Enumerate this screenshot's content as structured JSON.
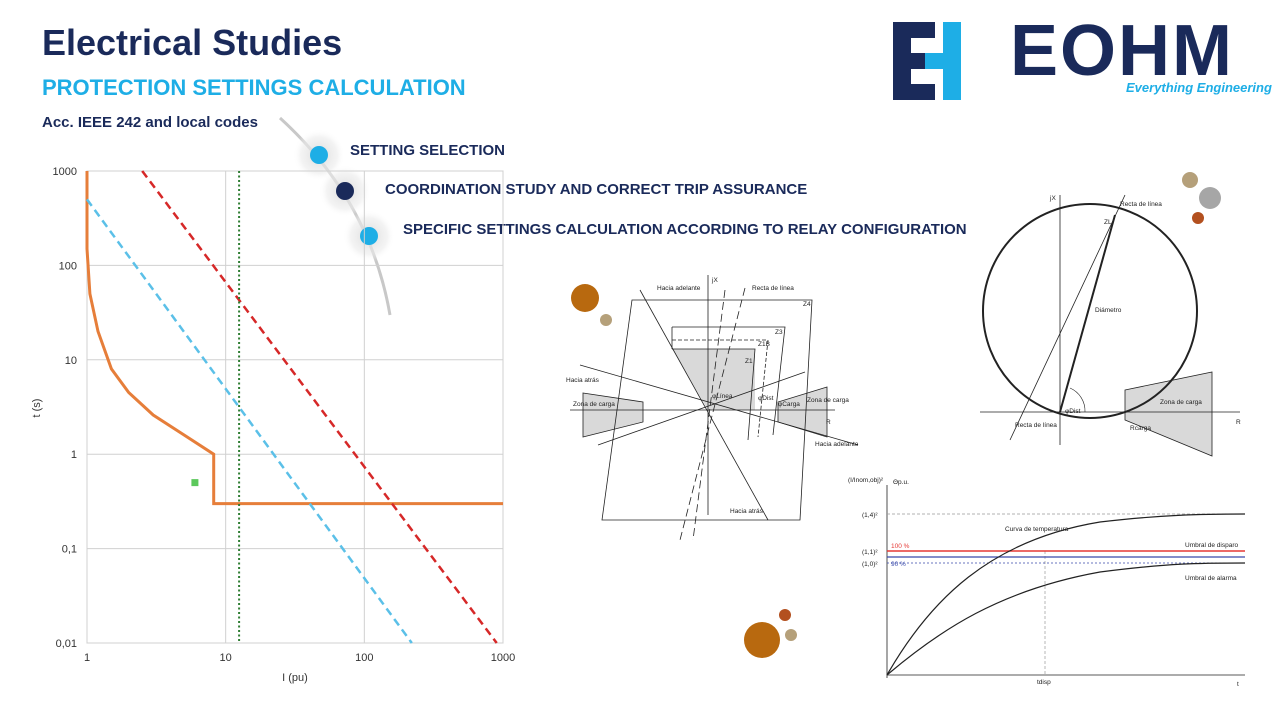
{
  "header": {
    "title": "Electrical Studies",
    "subtitle": "PROTECTION SETTINGS CALCULATION",
    "codes": "Acc. IEEE 242 and local codes"
  },
  "logo": {
    "text": "EOHM",
    "tagline": "Everything Engineering",
    "mark": "EH-monogram-icon",
    "colors": {
      "navy": "#1a2a5a",
      "cyan": "#1eaee6"
    }
  },
  "bullets": [
    {
      "label": "SETTING SELECTION",
      "color": "#1eaee6"
    },
    {
      "label": "COORDINATION STUDY AND CORRECT TRIP ASSURANCE",
      "color": "#1a2a5a"
    },
    {
      "label": "SPECIFIC SETTINGS CALCULATION ACCORDING TO RELAY CONFIGURATION",
      "color": "#1eaee6"
    }
  ],
  "chart_data": {
    "type": "line",
    "xscale": "log",
    "yscale": "log",
    "xlabel": "I (pu)",
    "ylabel": "t (s)",
    "xlim": [
      1,
      1000
    ],
    "ylim": [
      0.01,
      1000
    ],
    "xticks": [
      "1",
      "10",
      "100",
      "1000"
    ],
    "yticks": [
      "1000",
      "100",
      "10",
      "1",
      "0,1",
      "0,01"
    ],
    "grid": true,
    "series": [
      {
        "style": "solid",
        "color": "#e67e3a",
        "points": [
          [
            1,
            1000
          ],
          [
            1,
            150
          ],
          [
            1.05,
            50
          ],
          [
            1.2,
            20
          ],
          [
            1.5,
            8
          ],
          [
            2,
            4.5
          ],
          [
            3,
            2.6
          ],
          [
            5,
            1.6
          ],
          [
            8.2,
            1
          ],
          [
            8.2,
            0.3
          ],
          [
            1000,
            0.3
          ]
        ]
      },
      {
        "style": "dashed",
        "color": "#5bc0e8",
        "points": [
          [
            1,
            500
          ],
          [
            220,
            0.01
          ]
        ]
      },
      {
        "style": "dashed",
        "color": "#d62828",
        "points": [
          [
            2.5,
            1000
          ],
          [
            900,
            0.01
          ]
        ]
      },
      {
        "style": "dotted",
        "color": "#2e7d32",
        "points": [
          [
            12.5,
            1000
          ],
          [
            12.5,
            0.01
          ]
        ]
      },
      {
        "style": "marker",
        "color": "#5cc85c",
        "points": [
          [
            6,
            0.5
          ]
        ]
      }
    ]
  },
  "distance_diagram": {
    "labels": {
      "jx": "jX",
      "fwd_top": "Hacia adelante",
      "line_top": "Recta de línea",
      "z4": "Z4",
      "z3": "Z3",
      "z1b": "Z1B",
      "z1": "Z1",
      "back": "Hacia atrás",
      "load_left": "Zona de carga",
      "load_right": "Zona de carga",
      "phi_line": "φLínea",
      "phi_dist": "φDist",
      "phi_load": "φCarga",
      "fwd_bottom": "Hacia adelante",
      "back_bottom": "Hacia atrás",
      "r": "R"
    }
  },
  "mho_diagram": {
    "labels": {
      "jx": "jX",
      "line_top": "Recta de línea",
      "zl": "ZL",
      "diameter": "Diámetro",
      "phi_dist": "φDist",
      "load": "Zona de carga",
      "rload": "Rcarga",
      "line_bottom": "Recta de línea",
      "r": "R"
    }
  },
  "thermal_diagram": {
    "labels": {
      "y_axis": "(I/Inom,obj)²",
      "theta": "Θp.u.",
      "y14": "(1,4)²",
      "y11": "(1,1)²",
      "y10": "(1,0)²",
      "temp_curve": "Curva de temperatura",
      "p100": "100 %",
      "p90": "90 %",
      "trip": "Umbral de disparo",
      "alarm": "Umbral de alarma",
      "tdisp": "tdisp",
      "t": "t"
    }
  }
}
